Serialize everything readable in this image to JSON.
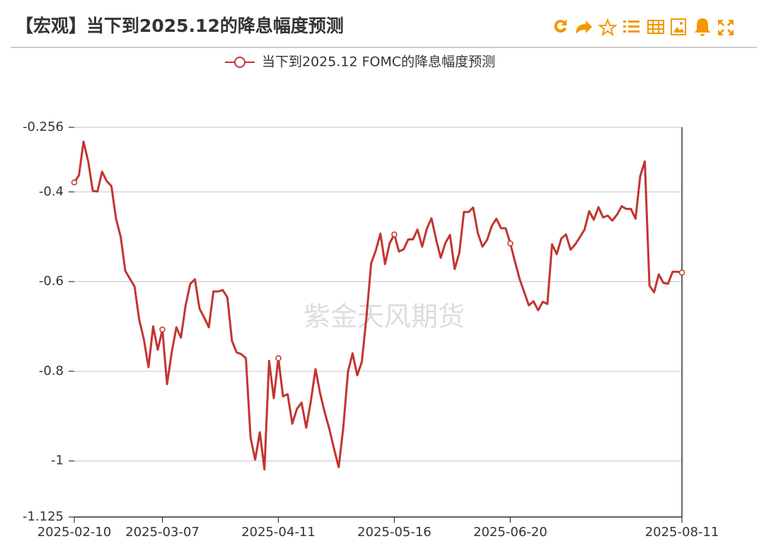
{
  "header": {
    "title": "【宏观】当下到2025.12的降息幅度预测"
  },
  "chart_data": {
    "type": "line",
    "watermark": "紫金天风期货",
    "categories": [
      "2025-02-10",
      null,
      null,
      null,
      null,
      null,
      null,
      null,
      null,
      null,
      null,
      null,
      null,
      null,
      null,
      null,
      null,
      null,
      null,
      "2025-03-07",
      null,
      null,
      null,
      null,
      null,
      null,
      null,
      null,
      null,
      null,
      null,
      null,
      null,
      null,
      null,
      null,
      null,
      null,
      null,
      null,
      null,
      null,
      null,
      null,
      "2025-04-11",
      null,
      null,
      null,
      null,
      null,
      null,
      null,
      null,
      null,
      null,
      null,
      null,
      null,
      null,
      null,
      null,
      null,
      null,
      null,
      null,
      null,
      null,
      null,
      null,
      "2025-05-16",
      null,
      null,
      null,
      null,
      null,
      null,
      null,
      null,
      null,
      null,
      null,
      null,
      null,
      null,
      null,
      null,
      null,
      null,
      null,
      null,
      null,
      null,
      null,
      null,
      "2025-06-20",
      null,
      null,
      null,
      null,
      null,
      null,
      null,
      null,
      null,
      null,
      null,
      null,
      null,
      null,
      null,
      null,
      null,
      null,
      null,
      null,
      null,
      null,
      null,
      null,
      null,
      null,
      null,
      null,
      null,
      null,
      null,
      null,
      null,
      null,
      null,
      null,
      "2025-08-11"
    ],
    "series": [
      {
        "name": "当下到2025.12 FOMC的降息幅度预测",
        "color": "#c23531",
        "values": [
          -0.379,
          -0.363,
          -0.288,
          -0.332,
          -0.398,
          -0.399,
          -0.355,
          -0.376,
          -0.387,
          -0.46,
          -0.5,
          -0.576,
          -0.594,
          -0.611,
          -0.685,
          -0.729,
          -0.791,
          -0.7,
          -0.752,
          -0.707,
          -0.829,
          -0.758,
          -0.702,
          -0.725,
          -0.653,
          -0.605,
          -0.595,
          -0.66,
          -0.68,
          -0.702,
          -0.622,
          -0.622,
          -0.619,
          -0.635,
          -0.732,
          -0.758,
          -0.762,
          -0.771,
          -0.948,
          -0.997,
          -0.936,
          -1.019,
          -0.777,
          -0.86,
          -0.771,
          -0.856,
          -0.851,
          -0.917,
          -0.884,
          -0.87,
          -0.926,
          -0.867,
          -0.795,
          -0.849,
          -0.892,
          -0.929,
          -0.973,
          -1.014,
          -0.925,
          -0.801,
          -0.76,
          -0.809,
          -0.779,
          -0.678,
          -0.559,
          -0.531,
          -0.493,
          -0.561,
          -0.514,
          -0.495,
          -0.533,
          -0.528,
          -0.506,
          -0.506,
          -0.484,
          -0.522,
          -0.482,
          -0.459,
          -0.506,
          -0.547,
          -0.514,
          -0.496,
          -0.572,
          -0.536,
          -0.445,
          -0.445,
          -0.435,
          -0.492,
          -0.522,
          -0.507,
          -0.476,
          -0.46,
          -0.481,
          -0.481,
          -0.515,
          -0.555,
          -0.594,
          -0.624,
          -0.653,
          -0.644,
          -0.664,
          -0.645,
          -0.65,
          -0.517,
          -0.539,
          -0.504,
          -0.495,
          -0.529,
          -0.517,
          -0.501,
          -0.484,
          -0.443,
          -0.462,
          -0.434,
          -0.457,
          -0.453,
          -0.464,
          -0.451,
          -0.432,
          -0.438,
          -0.438,
          -0.46,
          -0.365,
          -0.332,
          -0.609,
          -0.624,
          -0.584,
          -0.603,
          -0.605,
          -0.578,
          -0.578,
          -0.58
        ]
      }
    ],
    "ylim": [
      -1.125,
      -0.256
    ],
    "yticks": [
      -1.125,
      -1,
      -0.8,
      -0.6,
      -0.4,
      -0.256
    ],
    "grid": true
  }
}
